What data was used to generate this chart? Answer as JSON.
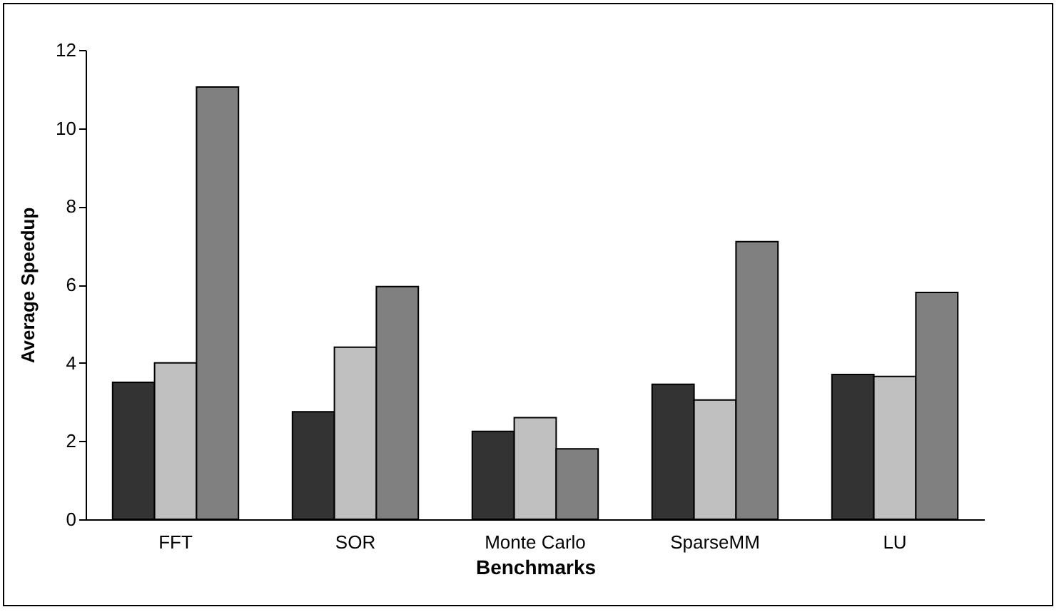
{
  "chart_data": {
    "type": "bar",
    "xlabel": "Benchmarks",
    "ylabel": "Average Speedup",
    "categories": [
      "FFT",
      "SOR",
      "Monte Carlo",
      "SparseMM",
      "LU"
    ],
    "series": [
      {
        "color": "#333333",
        "values": [
          3.5,
          2.75,
          2.25,
          3.45,
          3.7
        ]
      },
      {
        "color": "#c0c0c0",
        "values": [
          4.0,
          4.4,
          2.6,
          3.05,
          3.65
        ]
      },
      {
        "color": "#808080",
        "values": [
          11.05,
          5.95,
          1.8,
          7.1,
          5.8
        ]
      }
    ],
    "ylim": [
      0,
      12
    ],
    "yticks": [
      0,
      2,
      4,
      6,
      8,
      10,
      12
    ],
    "grid": false
  }
}
